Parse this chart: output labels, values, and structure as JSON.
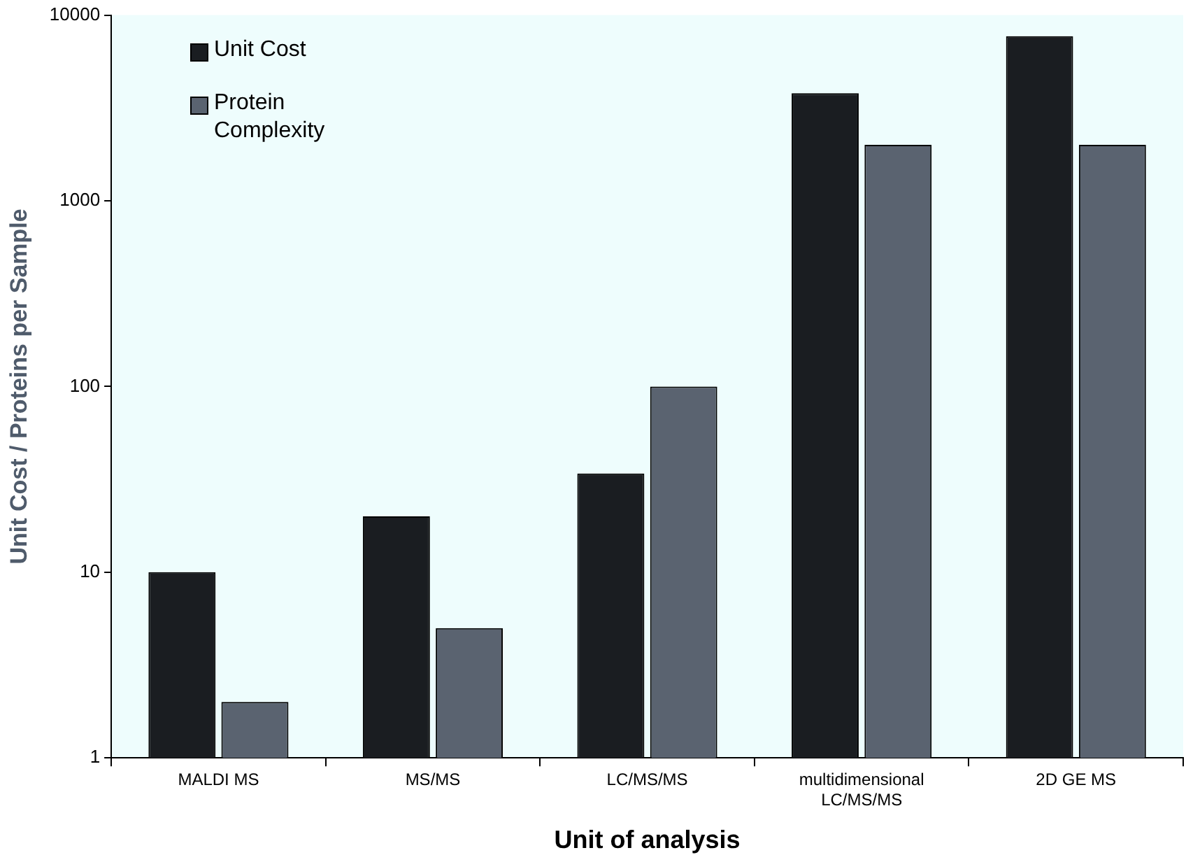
{
  "chart_data": {
    "type": "bar",
    "xlabel": "Unit of analysis",
    "ylabel": "Unit Cost / Proteins per Sample",
    "categories": [
      "MALDI MS",
      "MS/MS",
      "LC/MS/MS",
      "multidimensional LC/MS/MS",
      "2D GE MS"
    ],
    "series": [
      {
        "name": "Unit Cost",
        "color": "#1a1d21",
        "values": [
          10,
          20,
          34,
          3800,
          7700
        ]
      },
      {
        "name": "Protein Complexity",
        "color": "#5a6370",
        "values": [
          2,
          5,
          100,
          2000,
          2000
        ]
      }
    ],
    "log": true,
    "ylim": [
      1,
      10000
    ],
    "yticks": [
      1,
      10,
      100,
      1000,
      10000
    ],
    "grid": false,
    "legend": "top left"
  }
}
